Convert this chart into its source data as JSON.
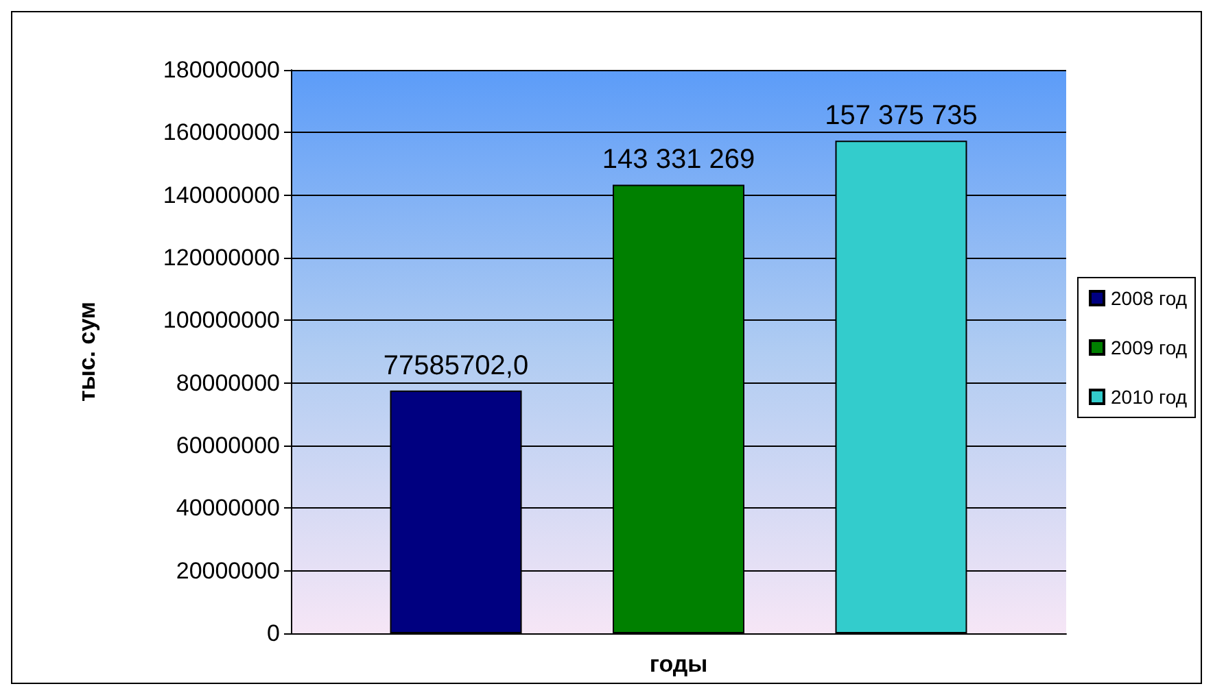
{
  "chart_data": {
    "type": "bar",
    "xlabel": "годы",
    "ylabel": "тыс. сум",
    "categories": [
      null
    ],
    "series": [
      {
        "name": "2008 год",
        "color": "#000080",
        "values": [
          77585702
        ],
        "value_labels": [
          "77585702,0"
        ]
      },
      {
        "name": "2009 год",
        "color": "#008000",
        "values": [
          143331269
        ],
        "value_labels": [
          "143 331 269"
        ]
      },
      {
        "name": "2010 год",
        "color": "#33cccc",
        "values": [
          157375735
        ],
        "value_labels": [
          "157 375 735"
        ]
      }
    ],
    "ylim": [
      0,
      180000000
    ],
    "yticks": [
      0,
      20000000,
      40000000,
      60000000,
      80000000,
      100000000,
      120000000,
      140000000,
      160000000,
      180000000
    ],
    "grid": "y",
    "legend": "right"
  }
}
